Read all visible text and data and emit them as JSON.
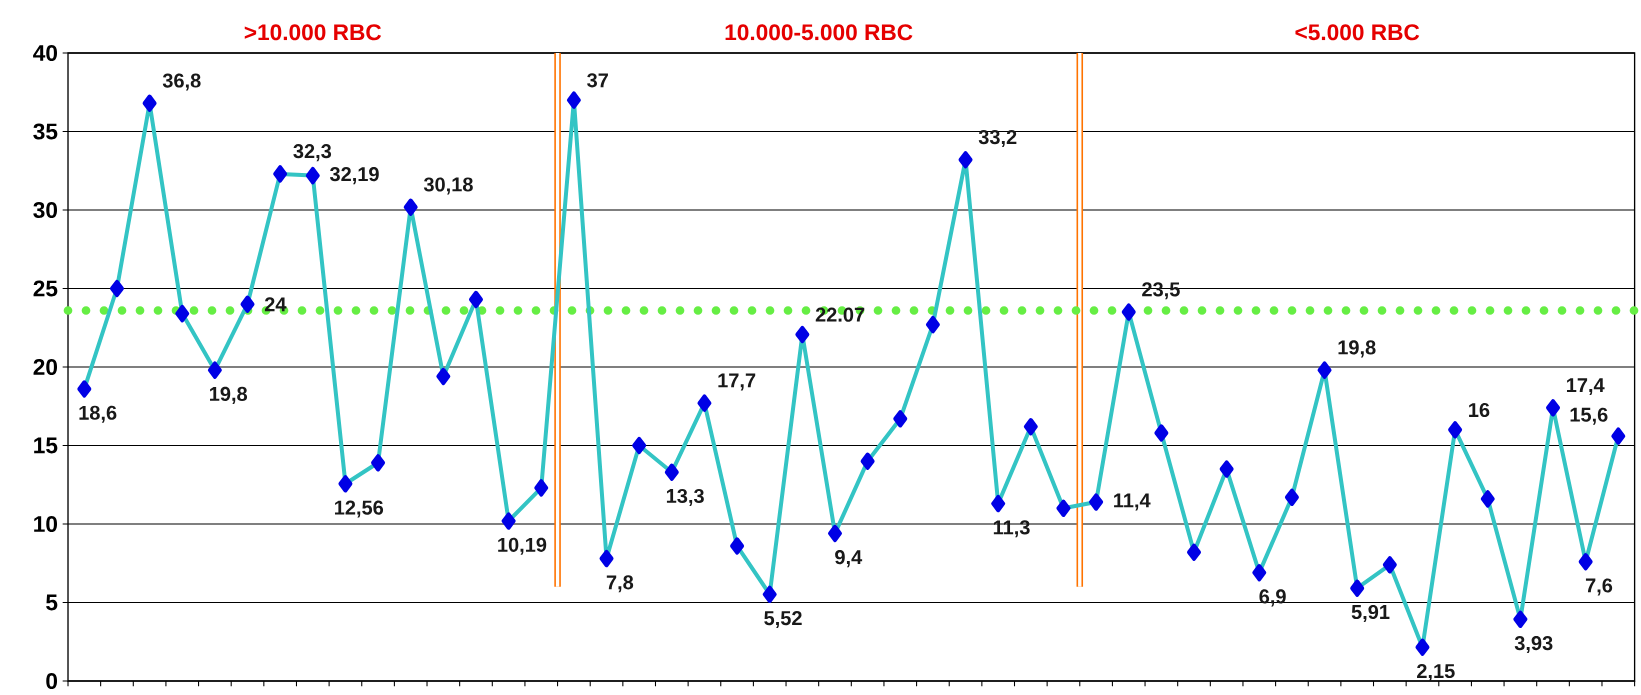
{
  "chart_data": {
    "type": "line",
    "categories": [
      null,
      null,
      null,
      null,
      null,
      null,
      null,
      null,
      null,
      null,
      null,
      null,
      null,
      null,
      null,
      null,
      null,
      null,
      null,
      null,
      null,
      null,
      null,
      null,
      null,
      null,
      null,
      null,
      null,
      null,
      null,
      null,
      null,
      null,
      null,
      null,
      null,
      null,
      null,
      null,
      null,
      null,
      null,
      null,
      null,
      null,
      null,
      null
    ],
    "values": [
      18.6,
      25.0,
      36.8,
      23.4,
      19.8,
      24,
      32.3,
      32.19,
      12.56,
      13.9,
      30.18,
      19.4,
      24.3,
      10.19,
      12.3,
      37,
      7.8,
      15.0,
      13.3,
      17.7,
      8.6,
      5.52,
      22.07,
      9.4,
      14.0,
      16.7,
      22.7,
      33.2,
      11.3,
      16.2,
      11.0,
      11.4,
      23.5,
      15.8,
      8.2,
      13.5,
      6.9,
      11.7,
      19.8,
      5.91,
      7.4,
      2.15,
      16,
      11.6,
      3.93,
      17.4,
      7.6,
      15.6
    ],
    "value_labels": [
      "18,6",
      null,
      "36,8",
      null,
      "19,8",
      "24",
      "32,3",
      "32,19",
      "12,56",
      null,
      "30,18",
      null,
      null,
      "10,19",
      null,
      "37",
      "7,8",
      null,
      "13,3",
      "17,7",
      null,
      "5,52",
      "22.07",
      "9,4",
      null,
      null,
      null,
      "33,2",
      "11,3",
      null,
      null,
      "11,4",
      "23,5",
      null,
      null,
      null,
      "6,9",
      null,
      "19,8",
      "5,91",
      null,
      "2,15",
      "16",
      null,
      "3,93",
      "17,4",
      "7,6",
      "15,6"
    ],
    "color": "#33c4c4",
    "marker": "diamond",
    "ylim": [
      0,
      40
    ],
    "yticks": [
      0,
      5,
      10,
      15,
      20,
      25,
      30,
      35,
      40
    ],
    "grid": "y",
    "ref_lines": [
      {
        "axis": "y",
        "value": 23.6,
        "color": "#66ee44",
        "line_style": "dotted"
      }
    ],
    "annotations": [
      ">10.000 RBC",
      "10.000-5.000 RBC",
      "<5.000 RBC"
    ]
  }
}
